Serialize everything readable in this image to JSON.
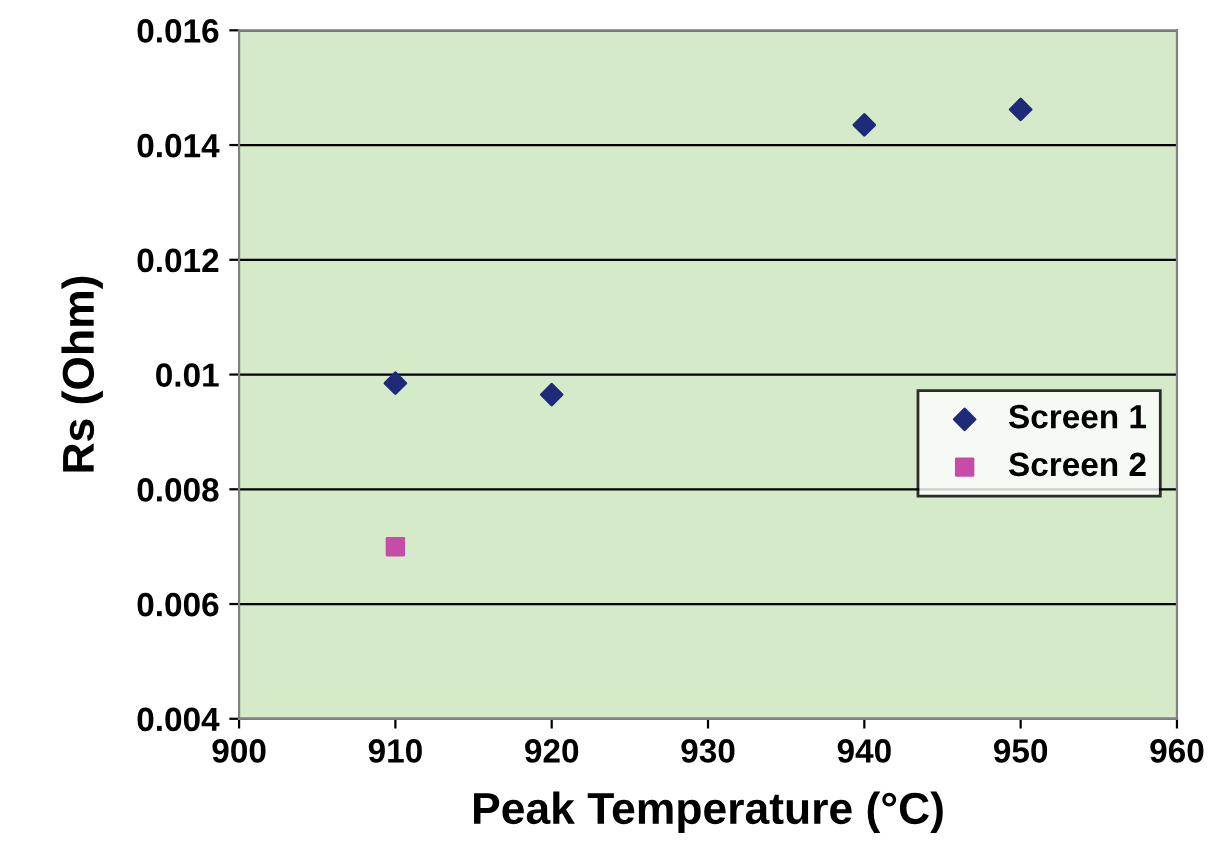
{
  "chart_data": {
    "type": "scatter",
    "xlabel": "Peak Temperature (°C)",
    "ylabel": "Rs (Ohm)",
    "xlim": [
      900,
      960
    ],
    "xticks": [
      900,
      910,
      920,
      930,
      940,
      950,
      960
    ],
    "ylim": [
      0.004,
      0.016
    ],
    "yticks": [
      0.004,
      0.006,
      0.008,
      0.01,
      0.012,
      0.014,
      0.016
    ],
    "grid": "y",
    "legend": "right",
    "series": [
      {
        "name": "Screen 1",
        "color": "#1f2a7a",
        "marker": "diamond",
        "x": [
          910,
          920,
          940,
          950
        ],
        "values": [
          0.00985,
          0.00965,
          0.01435,
          0.01462
        ]
      },
      {
        "name": "Screen 2",
        "color": "#c64ca8",
        "marker": "square",
        "x": [
          910
        ],
        "values": [
          0.007
        ]
      }
    ]
  }
}
